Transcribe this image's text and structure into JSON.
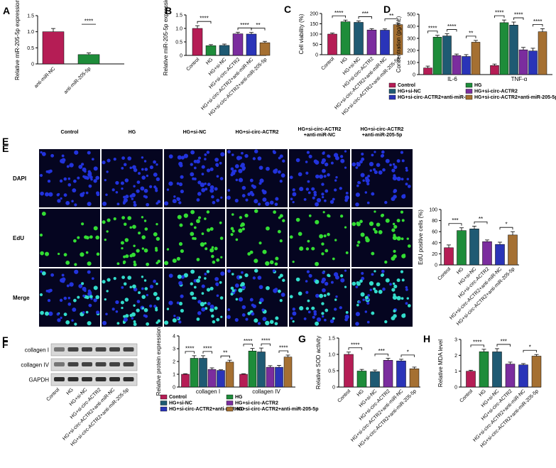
{
  "colors": {
    "control": "#b51d55",
    "hg": "#1e8c3a",
    "si_nc": "#1f5a73",
    "si_circ": "#7b2d9e",
    "anti_nc": "#2a34b8",
    "anti_205": "#a57032",
    "cell_bg": "#050520",
    "dapi": "#2233dd",
    "edu": "#33dd33"
  },
  "edu_images": {
    "panel_label": "E",
    "columns": [
      "Control",
      "HG",
      "HG+si-NC",
      "HG+si-circ-ACTR2",
      "HG+si-circ-ACTR2\n+anti-miR-NC",
      "HG+si-circ-ACTR2\n+anti-miR-205-5p"
    ],
    "rows": [
      "DAPI",
      "EdU",
      "Merge"
    ]
  },
  "western_blot": {
    "panel_label": "F",
    "bands": [
      "collagen I",
      "collagen IV",
      "GAPDH"
    ],
    "lanes": [
      "Control",
      "HG",
      "HG+si-NC",
      "HG+si-circ-ACTR2",
      "HG+si-circ-ACTR2+anti-miR-NC",
      "HG+si-circ-ACTR2+anti-miR-205-5p"
    ]
  },
  "chart_data": [
    {
      "panel": "A",
      "type": "bar",
      "ylabel": "Relative miR-205-5p expression",
      "ylim": [
        0,
        1.5
      ],
      "yticks": [
        0,
        0.5,
        1.0,
        1.5
      ],
      "categories": [
        "anti-miR-NC",
        "anti-miR-205-5p"
      ],
      "values": [
        1.0,
        0.29
      ],
      "errors": [
        0.1,
        0.05
      ],
      "color_keys": [
        "control",
        "hg"
      ],
      "brackets": [
        {
          "from": 0,
          "to": 1,
          "label": "****",
          "single": true
        }
      ]
    },
    {
      "panel": "B",
      "type": "bar",
      "ylabel": "Relative miR-205-5p expression",
      "ylim": [
        0,
        1.5
      ],
      "yticks": [
        0,
        0.5,
        1.0,
        1.5
      ],
      "categories": [
        "Control",
        "HG",
        "HG+si-NC",
        "HG+si-circ-ACTR2",
        "HG+si-circ-ACTR2+anti-miR-NC",
        "HG+si-circ-ACTR2+anti-miR-205-5p"
      ],
      "values": [
        1.0,
        0.36,
        0.37,
        0.8,
        0.79,
        0.47
      ],
      "errors": [
        0.1,
        0.04,
        0.05,
        0.06,
        0.06,
        0.05
      ],
      "color_keys": [
        "control",
        "hg",
        "si_nc",
        "si_circ",
        "anti_nc",
        "anti_205"
      ],
      "brackets": [
        {
          "from": 0,
          "to": 1,
          "label": "****"
        },
        {
          "from": 3,
          "to": 4,
          "label": "****"
        },
        {
          "from": 4,
          "to": 5,
          "label": "**"
        }
      ]
    },
    {
      "panel": "C",
      "type": "bar",
      "ylabel": "Cell viability (%)",
      "ylim": [
        0,
        200
      ],
      "yticks": [
        0,
        50,
        100,
        150,
        200
      ],
      "categories": [
        "Control",
        "HG",
        "HG+si-NC",
        "HG+si-circ-ACTR2",
        "HG+si-circ-ACTR2+anti-miR-NC",
        "HG+si-circ-ACTR2+anti-miR-205-5p"
      ],
      "values": [
        100,
        160,
        157,
        120,
        119,
        146
      ],
      "errors": [
        5,
        8,
        7,
        6,
        6,
        7
      ],
      "color_keys": [
        "control",
        "hg",
        "si_nc",
        "si_circ",
        "anti_nc",
        "anti_205"
      ],
      "brackets": [
        {
          "from": 0,
          "to": 1,
          "label": "****"
        },
        {
          "from": 2,
          "to": 3,
          "label": "***"
        },
        {
          "from": 4,
          "to": 5,
          "label": "**"
        }
      ]
    },
    {
      "panel": "D",
      "type": "bar",
      "ylabel": "Concentration (pg/mL)",
      "ylim": [
        0,
        500
      ],
      "yticks": [
        0,
        100,
        200,
        300,
        400,
        500
      ],
      "groups": [
        "IL-6",
        "TNF-α"
      ],
      "series": [
        {
          "name": "Control",
          "color_key": "control",
          "values": [
            55,
            75
          ],
          "errors": [
            15,
            12
          ]
        },
        {
          "name": "HG",
          "color_key": "hg",
          "values": [
            310,
            430
          ],
          "errors": [
            15,
            22
          ]
        },
        {
          "name": "HG+si-NC",
          "color_key": "si_nc",
          "values": [
            320,
            410
          ],
          "errors": [
            18,
            25
          ]
        },
        {
          "name": "HG+si-circ-ACTR2",
          "color_key": "si_circ",
          "values": [
            158,
            205
          ],
          "errors": [
            12,
            20
          ]
        },
        {
          "name": "HG+si-circ-ACTR2+anti-miR-NC",
          "color_key": "anti_nc",
          "values": [
            150,
            196
          ],
          "errors": [
            15,
            22
          ]
        },
        {
          "name": "HG+si-circ-ACTR2+anti-miR-205-5p",
          "color_key": "anti_205",
          "values": [
            268,
            355
          ],
          "errors": [
            15,
            25
          ]
        }
      ],
      "brackets": [
        {
          "group": 0,
          "from": 0,
          "to": 1,
          "label": "****"
        },
        {
          "group": 0,
          "from": 2,
          "to": 3,
          "label": "****"
        },
        {
          "group": 0,
          "from": 4,
          "to": 5,
          "label": "**"
        },
        {
          "group": 1,
          "from": 0,
          "to": 1,
          "label": "****"
        },
        {
          "group": 1,
          "from": 2,
          "to": 3,
          "label": "****"
        },
        {
          "group": 1,
          "from": 4,
          "to": 5,
          "label": "****"
        }
      ]
    },
    {
      "panel": "E",
      "type": "bar",
      "ylabel": "EdU positive cells (%)",
      "ylim": [
        0,
        100
      ],
      "yticks": [
        0,
        20,
        40,
        60,
        80,
        100
      ],
      "categories": [
        "Control",
        "HG",
        "HG+si-NC",
        "HG+si-circ-ACTR2",
        "HG+si-circ-ACTR2+anti-miR-NC",
        "HG+si-circ-ACTR2+anti-miR-205-5p"
      ],
      "values": [
        31,
        62,
        65,
        42,
        37,
        54
      ],
      "errors": [
        5,
        5,
        5,
        3,
        4,
        6
      ],
      "color_keys": [
        "control",
        "hg",
        "si_nc",
        "si_circ",
        "anti_nc",
        "anti_205"
      ],
      "brackets": [
        {
          "from": 0,
          "to": 1,
          "label": "***"
        },
        {
          "from": 2,
          "to": 3,
          "label": "**"
        },
        {
          "from": 4,
          "to": 5,
          "label": "*"
        }
      ]
    },
    {
      "panel": "F",
      "type": "bar",
      "ylabel": "Relative protein expression",
      "ylim": [
        0,
        4
      ],
      "yticks": [
        0,
        1,
        2,
        3,
        4
      ],
      "groups": [
        "collagen I",
        "collagen IV"
      ],
      "series": [
        {
          "name": "Control",
          "color_key": "control",
          "values": [
            1.0,
            1.0
          ],
          "errors": [
            0.04,
            0.04
          ]
        },
        {
          "name": "HG",
          "color_key": "hg",
          "values": [
            2.25,
            2.82
          ],
          "errors": [
            0.2,
            0.2
          ]
        },
        {
          "name": "HG+si-NC",
          "color_key": "si_nc",
          "values": [
            2.25,
            2.75
          ],
          "errors": [
            0.2,
            0.3
          ]
        },
        {
          "name": "HG+si-circ-ACTR2",
          "color_key": "si_circ",
          "values": [
            1.38,
            1.55
          ],
          "errors": [
            0.12,
            0.12
          ]
        },
        {
          "name": "HG+si-circ-ACTR2+anti-miR-NC",
          "color_key": "anti_nc",
          "values": [
            1.3,
            1.55
          ],
          "errors": [
            0.05,
            0.15
          ]
        },
        {
          "name": "HG+si-circ-ACTR2+anti-miR-205-5p",
          "color_key": "anti_205",
          "values": [
            1.95,
            2.35
          ],
          "errors": [
            0.15,
            0.15
          ]
        }
      ],
      "brackets": [
        {
          "group": 0,
          "from": 0,
          "to": 1,
          "label": "****"
        },
        {
          "group": 0,
          "from": 2,
          "to": 3,
          "label": "****"
        },
        {
          "group": 0,
          "from": 4,
          "to": 5,
          "label": "**"
        },
        {
          "group": 1,
          "from": 0,
          "to": 1,
          "label": "****"
        },
        {
          "group": 1,
          "from": 2,
          "to": 3,
          "label": "****"
        },
        {
          "group": 1,
          "from": 4,
          "to": 5,
          "label": "****"
        }
      ]
    },
    {
      "panel": "G",
      "type": "bar",
      "ylabel": "Relative SOD activity",
      "ylim": [
        0,
        1.5
      ],
      "yticks": [
        0,
        0.5,
        1.0,
        1.5
      ],
      "categories": [
        "Control",
        "HG",
        "HG+si-NC",
        "HG+si-circ-ACTR2",
        "HG+si-circ-ACTR2+anti-miR-NC",
        "HG+si-circ-ACTR2+anti-miR-205-5p"
      ],
      "values": [
        1.0,
        0.49,
        0.47,
        0.82,
        0.8,
        0.56
      ],
      "errors": [
        0.07,
        0.05,
        0.05,
        0.06,
        0.05,
        0.05
      ],
      "color_keys": [
        "control",
        "hg",
        "si_nc",
        "si_circ",
        "anti_nc",
        "anti_205"
      ],
      "brackets": [
        {
          "from": 0,
          "to": 1,
          "label": "****"
        },
        {
          "from": 2,
          "to": 3,
          "label": "***"
        },
        {
          "from": 4,
          "to": 5,
          "label": "*"
        }
      ]
    },
    {
      "panel": "H",
      "type": "bar",
      "ylabel": "Relative MDA level",
      "ylim": [
        0,
        3
      ],
      "yticks": [
        0,
        1,
        2,
        3
      ],
      "categories": [
        "Control",
        "HG",
        "HG+si-NC",
        "HG+si-circ-ACTR2",
        "HG+si-circ-ACTR2+anti-miR-NC",
        "HG+si-circ-ACTR2+anti-miR-205-5p"
      ],
      "values": [
        1.0,
        2.23,
        2.22,
        1.45,
        1.4,
        1.95
      ],
      "errors": [
        0.06,
        0.15,
        0.2,
        0.12,
        0.08,
        0.1
      ],
      "color_keys": [
        "control",
        "hg",
        "si_nc",
        "si_circ",
        "anti_nc",
        "anti_205"
      ],
      "brackets": [
        {
          "from": 0,
          "to": 1,
          "label": "****"
        },
        {
          "from": 2,
          "to": 3,
          "label": "***"
        },
        {
          "from": 4,
          "to": 5,
          "label": "*"
        }
      ]
    }
  ]
}
